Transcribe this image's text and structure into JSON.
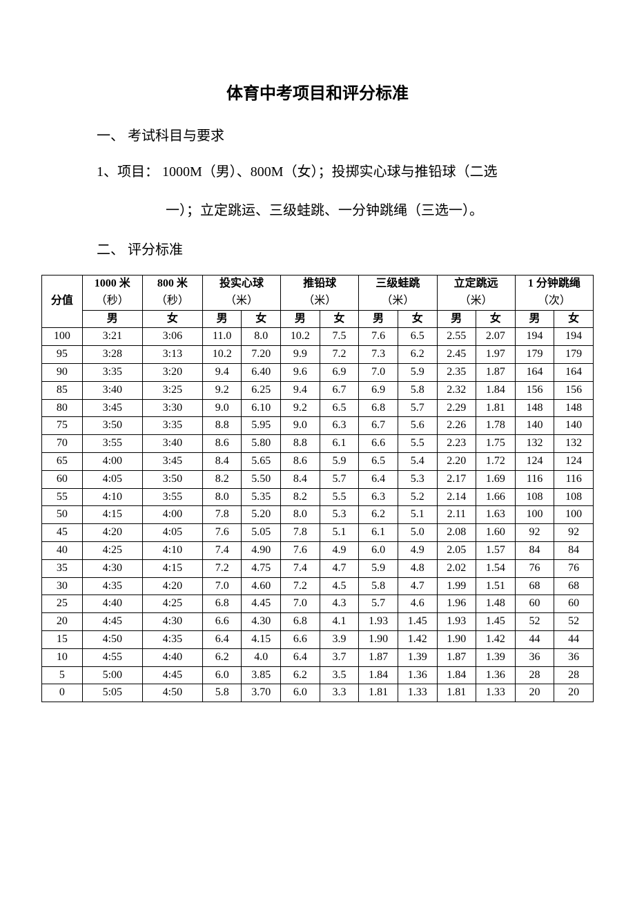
{
  "title": "体育中考项目和评分标准",
  "section1": {
    "heading": "一、 考试科目与要求",
    "line1": "1、项目：  1000M（男）、800M（女）；投掷实心球与推铅球（二选",
    "line2": "一）；立定跳运、三级蛙跳、一分钟跳绳（三选一）。"
  },
  "section2": {
    "heading": "二、 评分标准"
  },
  "table": {
    "score_label": "分值",
    "columns": [
      {
        "title": "1000 米",
        "unit": "（秒）",
        "sub": [
          "男"
        ]
      },
      {
        "title": "800 米",
        "unit": "（秒）",
        "sub": [
          "女"
        ]
      },
      {
        "title": "投实心球",
        "unit": "（米）",
        "sub": [
          "男",
          "女"
        ]
      },
      {
        "title": "推铅球",
        "unit": "（米）",
        "sub": [
          "男",
          "女"
        ]
      },
      {
        "title": "三级蛙跳",
        "unit": "（米）",
        "sub": [
          "男",
          "女"
        ]
      },
      {
        "title": "立定跳远",
        "unit": "（米）",
        "sub": [
          "男",
          "女"
        ]
      },
      {
        "title": "1 分钟跳绳",
        "unit": "（次）",
        "sub": [
          "男",
          "女"
        ]
      }
    ],
    "rows": [
      {
        "score": "100",
        "v": [
          "3:21",
          "3:06",
          "11.0",
          "8.0",
          "10.2",
          "7.5",
          "7.6",
          "6.5",
          "2.55",
          "2.07",
          "194",
          "194"
        ]
      },
      {
        "score": "95",
        "v": [
          "3:28",
          "3:13",
          "10.2",
          "7.20",
          "9.9",
          "7.2",
          "7.3",
          "6.2",
          "2.45",
          "1.97",
          "179",
          "179"
        ]
      },
      {
        "score": "90",
        "v": [
          "3:35",
          "3:20",
          "9.4",
          "6.40",
          "9.6",
          "6.9",
          "7.0",
          "5.9",
          "2.35",
          "1.87",
          "164",
          "164"
        ]
      },
      {
        "score": "85",
        "v": [
          "3:40",
          "3:25",
          "9.2",
          "6.25",
          "9.4",
          "6.7",
          "6.9",
          "5.8",
          "2.32",
          "1.84",
          "156",
          "156"
        ]
      },
      {
        "score": "80",
        "v": [
          "3:45",
          "3:30",
          "9.0",
          "6.10",
          "9.2",
          "6.5",
          "6.8",
          "5.7",
          "2.29",
          "1.81",
          "148",
          "148"
        ]
      },
      {
        "score": "75",
        "v": [
          "3:50",
          "3:35",
          "8.8",
          "5.95",
          "9.0",
          "6.3",
          "6.7",
          "5.6",
          "2.26",
          "1.78",
          "140",
          "140"
        ]
      },
      {
        "score": "70",
        "v": [
          "3:55",
          "3:40",
          "8.6",
          "5.80",
          "8.8",
          "6.1",
          "6.6",
          "5.5",
          "2.23",
          "1.75",
          "132",
          "132"
        ]
      },
      {
        "score": "65",
        "v": [
          "4:00",
          "3:45",
          "8.4",
          "5.65",
          "8.6",
          "5.9",
          "6.5",
          "5.4",
          "2.20",
          "1.72",
          "124",
          "124"
        ]
      },
      {
        "score": "60",
        "v": [
          "4:05",
          "3:50",
          "8.2",
          "5.50",
          "8.4",
          "5.7",
          "6.4",
          "5.3",
          "2.17",
          "1.69",
          "116",
          "116"
        ]
      },
      {
        "score": "55",
        "v": [
          "4:10",
          "3:55",
          "8.0",
          "5.35",
          "8.2",
          "5.5",
          "6.3",
          "5.2",
          "2.14",
          "1.66",
          "108",
          "108"
        ]
      },
      {
        "score": "50",
        "v": [
          "4:15",
          "4:00",
          "7.8",
          "5.20",
          "8.0",
          "5.3",
          "6.2",
          "5.1",
          "2.11",
          "1.63",
          "100",
          "100"
        ]
      },
      {
        "score": "45",
        "v": [
          "4:20",
          "4:05",
          "7.6",
          "5.05",
          "7.8",
          "5.1",
          "6.1",
          "5.0",
          "2.08",
          "1.60",
          "92",
          "92"
        ]
      },
      {
        "score": "40",
        "v": [
          "4:25",
          "4:10",
          "7.4",
          "4.90",
          "7.6",
          "4.9",
          "6.0",
          "4.9",
          "2.05",
          "1.57",
          "84",
          "84"
        ]
      },
      {
        "score": "35",
        "v": [
          "4:30",
          "4:15",
          "7.2",
          "4.75",
          "7.4",
          "4.7",
          "5.9",
          "4.8",
          "2.02",
          "1.54",
          "76",
          "76"
        ]
      },
      {
        "score": "30",
        "v": [
          "4:35",
          "4:20",
          "7.0",
          "4.60",
          "7.2",
          "4.5",
          "5.8",
          "4.7",
          "1.99",
          "1.51",
          "68",
          "68"
        ]
      },
      {
        "score": "25",
        "v": [
          "4:40",
          "4:25",
          "6.8",
          "4.45",
          "7.0",
          "4.3",
          "5.7",
          "4.6",
          "1.96",
          "1.48",
          "60",
          "60"
        ]
      },
      {
        "score": "20",
        "v": [
          "4:45",
          "4:30",
          "6.6",
          "4.30",
          "6.8",
          "4.1",
          "1.93",
          "1.45",
          "1.93",
          "1.45",
          "52",
          "52"
        ]
      },
      {
        "score": "15",
        "v": [
          "4:50",
          "4:35",
          "6.4",
          "4.15",
          "6.6",
          "3.9",
          "1.90",
          "1.42",
          "1.90",
          "1.42",
          "44",
          "44"
        ]
      },
      {
        "score": "10",
        "v": [
          "4:55",
          "4:40",
          "6.2",
          "4.0",
          "6.4",
          "3.7",
          "1.87",
          "1.39",
          "1.87",
          "1.39",
          "36",
          "36"
        ]
      },
      {
        "score": "5",
        "v": [
          "5:00",
          "4:45",
          "6.0",
          "3.85",
          "6.2",
          "3.5",
          "1.84",
          "1.36",
          "1.84",
          "1.36",
          "28",
          "28"
        ]
      },
      {
        "score": "0",
        "v": [
          "5:05",
          "4:50",
          "5.8",
          "3.70",
          "6.0",
          "3.3",
          "1.81",
          "1.33",
          "1.81",
          "1.33",
          "20",
          "20"
        ]
      }
    ]
  }
}
